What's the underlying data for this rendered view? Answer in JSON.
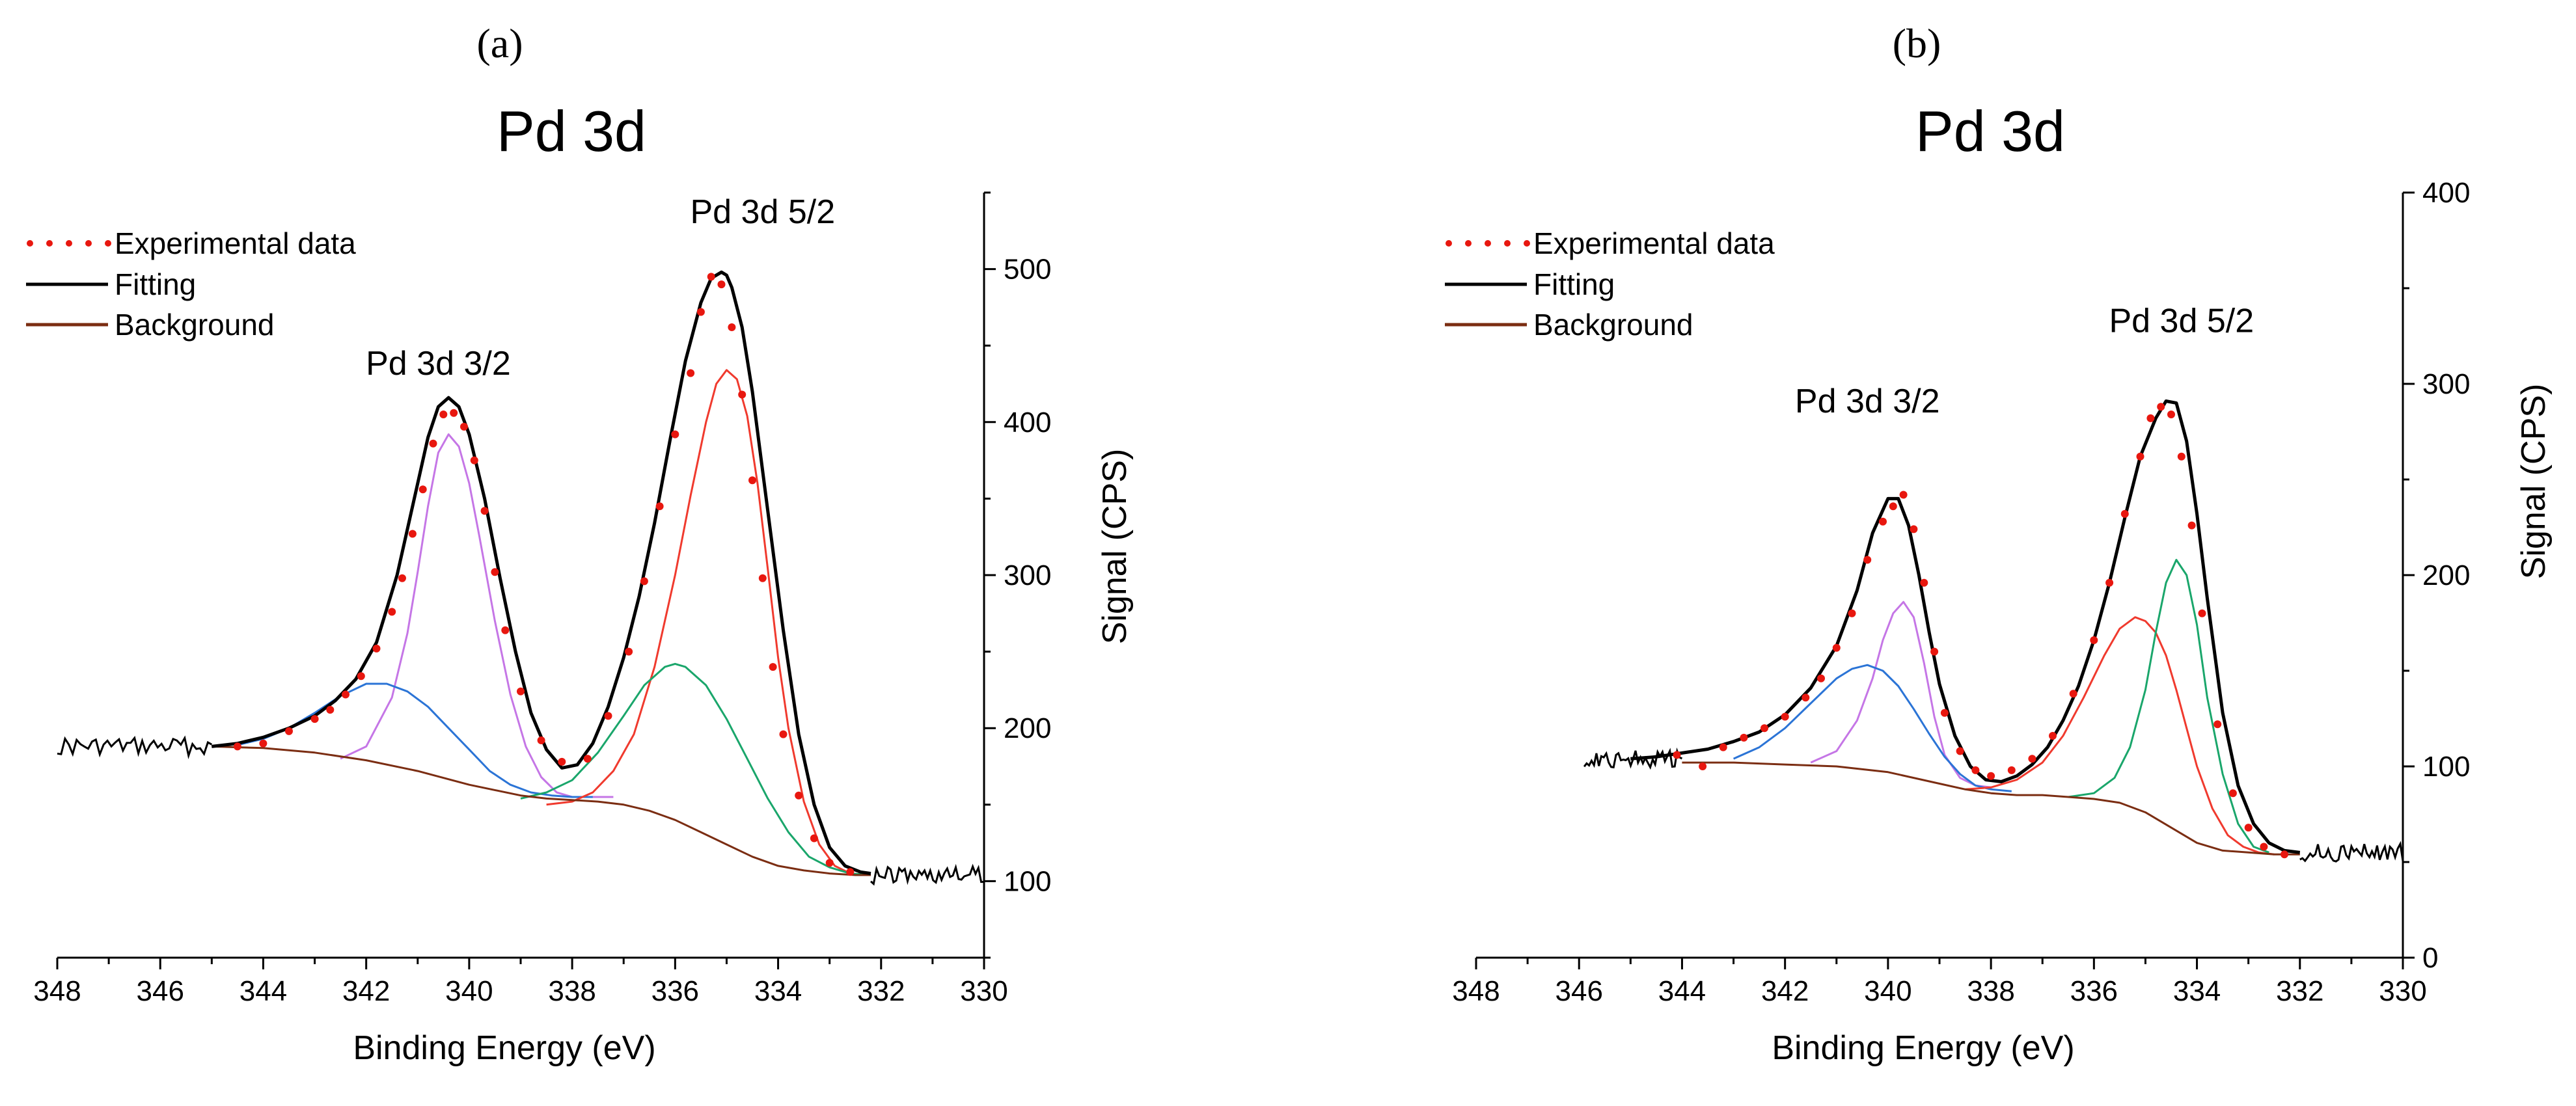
{
  "chart_data": [
    {
      "panel_label": "(a)",
      "type": "line",
      "title": "Pd 3d",
      "xlabel": "Binding Energy (eV)",
      "ylabel": "Signal (CPS)",
      "xlim": [
        348,
        330
      ],
      "ylim": [
        50,
        550
      ],
      "x_ticks": [
        348,
        346,
        344,
        342,
        340,
        338,
        336,
        334,
        332,
        330
      ],
      "y_ticks": [
        100,
        200,
        300,
        400,
        500
      ],
      "legend": {
        "position": "top-left",
        "entries": [
          {
            "name": "Experimental data",
            "color": "#e8170f",
            "style": "dots"
          },
          {
            "name": "Fitting",
            "color": "#000000",
            "style": "line"
          },
          {
            "name": "Background",
            "color": "#7b2d12",
            "style": "line"
          }
        ]
      },
      "annotations": [
        {
          "text": "Pd 3d 3/2",
          "x": 340.6,
          "y": 431
        },
        {
          "text": "Pd 3d 5/2",
          "x": 334.3,
          "y": 530
        }
      ],
      "series": [
        {
          "name": "Experimental data",
          "color": "#e8170f",
          "x": [
            344.5,
            344.0,
            343.5,
            343.0,
            342.7,
            342.4,
            342.1,
            341.8,
            341.5,
            341.3,
            341.1,
            340.9,
            340.7,
            340.5,
            340.3,
            340.1,
            339.9,
            339.7,
            339.5,
            339.3,
            339.0,
            338.6,
            338.2,
            337.7,
            337.3,
            336.9,
            336.6,
            336.3,
            336.0,
            335.7,
            335.5,
            335.3,
            335.1,
            334.9,
            334.7,
            334.5,
            334.3,
            334.1,
            333.9,
            333.6,
            333.3,
            333.0,
            332.6
          ],
          "y": [
            188,
            190,
            198,
            206,
            212,
            222,
            234,
            252,
            276,
            298,
            327,
            356,
            386,
            405,
            406,
            397,
            375,
            342,
            302,
            264,
            224,
            192,
            178,
            180,
            208,
            250,
            296,
            345,
            392,
            432,
            472,
            495,
            490,
            462,
            418,
            362,
            298,
            240,
            196,
            156,
            128,
            112,
            106
          ]
        },
        {
          "name": "Fitting",
          "color": "#000000",
          "x": [
            345.0,
            344.5,
            344.0,
            343.5,
            343.0,
            342.6,
            342.2,
            341.8,
            341.4,
            341.0,
            340.8,
            340.6,
            340.4,
            340.2,
            340.0,
            339.7,
            339.4,
            339.1,
            338.8,
            338.5,
            338.2,
            337.9,
            337.6,
            337.3,
            337.0,
            336.7,
            336.4,
            336.1,
            335.8,
            335.5,
            335.3,
            335.1,
            335.0,
            334.9,
            334.7,
            334.5,
            334.2,
            333.9,
            333.6,
            333.3,
            333.0,
            332.7,
            332.4,
            332.2
          ],
          "y": [
            188,
            190,
            194,
            200,
            208,
            218,
            232,
            256,
            300,
            360,
            390,
            410,
            416,
            410,
            392,
            350,
            298,
            250,
            210,
            186,
            174,
            176,
            190,
            214,
            246,
            286,
            334,
            388,
            440,
            478,
            494,
            498,
            496,
            488,
            462,
            420,
            342,
            264,
            196,
            150,
            122,
            110,
            106,
            105
          ]
        },
        {
          "name": "Background",
          "color": "#7b2d12",
          "x": [
            345.0,
            344.0,
            343.0,
            342.0,
            341.0,
            340.0,
            339.0,
            338.5,
            338.0,
            337.5,
            337.0,
            336.5,
            336.0,
            335.5,
            335.0,
            334.5,
            334.0,
            333.5,
            333.0,
            332.5,
            332.2
          ],
          "y": [
            188,
            187,
            184,
            179,
            172,
            163,
            156,
            154,
            153,
            152,
            150,
            146,
            140,
            132,
            124,
            116,
            110,
            107,
            105,
            104,
            104
          ]
        },
        {
          "name": "Pd 3d 3/2 component",
          "color": "#c576e6",
          "x": [
            342.5,
            342.0,
            341.5,
            341.2,
            341.0,
            340.8,
            340.6,
            340.4,
            340.2,
            340.0,
            339.8,
            339.5,
            339.2,
            338.9,
            338.6,
            338.3,
            338.0,
            337.6,
            337.2
          ],
          "y": [
            180,
            188,
            220,
            262,
            302,
            345,
            380,
            392,
            384,
            360,
            325,
            270,
            222,
            188,
            168,
            158,
            155,
            155,
            155
          ]
        },
        {
          "name": "Pd 3d 3/2 broad component",
          "color": "#2b74d6",
          "x": [
            344.5,
            344.0,
            343.5,
            343.0,
            342.5,
            342.0,
            341.6,
            341.2,
            340.8,
            340.4,
            340.0,
            339.6,
            339.2,
            338.8,
            338.4,
            338.0,
            337.6
          ],
          "y": [
            189,
            193,
            200,
            210,
            221,
            229,
            229,
            224,
            214,
            200,
            186,
            172,
            163,
            158,
            156,
            155,
            155
          ]
        },
        {
          "name": "Pd 3d 5/2 component",
          "color": "#f03a2e",
          "x": [
            338.5,
            338.0,
            337.6,
            337.2,
            336.8,
            336.4,
            336.0,
            335.7,
            335.4,
            335.2,
            335.0,
            334.8,
            334.6,
            334.4,
            334.2,
            334.0,
            333.8,
            333.5,
            333.2,
            332.9,
            332.6,
            332.2
          ],
          "y": [
            150,
            152,
            158,
            172,
            196,
            240,
            300,
            352,
            400,
            425,
            434,
            428,
            404,
            360,
            304,
            246,
            200,
            152,
            124,
            110,
            105,
            104
          ]
        },
        {
          "name": "Pd 3d 5/2 broad component",
          "color": "#1aa66b",
          "x": [
            339.0,
            338.5,
            338.0,
            337.5,
            337.0,
            336.6,
            336.2,
            336.0,
            335.8,
            335.4,
            335.0,
            334.6,
            334.2,
            333.8,
            333.4,
            333.0,
            332.6,
            332.2
          ],
          "y": [
            154,
            158,
            166,
            184,
            208,
            228,
            240,
            242,
            240,
            228,
            206,
            180,
            154,
            132,
            116,
            109,
            105,
            104
          ]
        }
      ]
    },
    {
      "panel_label": "(b)",
      "type": "line",
      "title": "Pd 3d",
      "xlabel": "Binding Energy (eV)",
      "ylabel": "Signal (CPS)",
      "xlim": [
        348,
        330
      ],
      "ylim": [
        0,
        400
      ],
      "x_ticks": [
        348,
        346,
        344,
        342,
        340,
        338,
        336,
        334,
        332,
        330
      ],
      "y_ticks": [
        0,
        100,
        200,
        300,
        400
      ],
      "legend": {
        "position": "top-left",
        "entries": [
          {
            "name": "Experimental data",
            "color": "#e8170f",
            "style": "dots"
          },
          {
            "name": "Fitting",
            "color": "#000000",
            "style": "line"
          },
          {
            "name": "Background",
            "color": "#7b2d12",
            "style": "line"
          }
        ]
      },
      "annotations": [
        {
          "text": "Pd 3d 3/2",
          "x": 340.4,
          "y": 285
        },
        {
          "text": "Pd 3d 5/2",
          "x": 334.3,
          "y": 327
        }
      ],
      "series": [
        {
          "name": "Experimental data",
          "color": "#e8170f",
          "x": [
            344.1,
            343.6,
            343.2,
            342.8,
            342.4,
            342.0,
            341.6,
            341.3,
            341.0,
            340.7,
            340.4,
            340.1,
            339.9,
            339.7,
            339.5,
            339.3,
            339.1,
            338.9,
            338.6,
            338.3,
            338.0,
            337.6,
            337.2,
            336.8,
            336.4,
            336.0,
            335.7,
            335.4,
            335.1,
            334.9,
            334.7,
            334.5,
            334.3,
            334.1,
            333.9,
            333.6,
            333.3,
            333.0,
            332.7,
            332.3
          ],
          "y": [
            106,
            100,
            110,
            115,
            120,
            126,
            136,
            146,
            162,
            180,
            208,
            228,
            236,
            242,
            224,
            196,
            160,
            128,
            108,
            98,
            95,
            98,
            104,
            116,
            138,
            166,
            196,
            232,
            262,
            282,
            288,
            284,
            262,
            226,
            180,
            122,
            86,
            68,
            58,
            54
          ]
        },
        {
          "name": "Fitting",
          "color": "#000000",
          "x": [
            345.0,
            344.5,
            344.0,
            343.5,
            343.0,
            342.5,
            342.0,
            341.5,
            341.0,
            340.6,
            340.3,
            340.0,
            339.8,
            339.6,
            339.4,
            339.2,
            339.0,
            338.7,
            338.4,
            338.1,
            337.8,
            337.5,
            337.2,
            336.9,
            336.6,
            336.3,
            336.0,
            335.7,
            335.4,
            335.1,
            334.8,
            334.6,
            334.4,
            334.2,
            334.0,
            333.8,
            333.5,
            333.2,
            332.9,
            332.6,
            332.3,
            332.0
          ],
          "y": [
            104,
            105,
            107,
            109,
            113,
            118,
            127,
            141,
            163,
            192,
            222,
            240,
            240,
            226,
            200,
            170,
            143,
            116,
            100,
            93,
            92,
            95,
            101,
            110,
            124,
            142,
            166,
            196,
            230,
            262,
            282,
            291,
            290,
            270,
            232,
            188,
            128,
            90,
            70,
            60,
            56,
            55
          ]
        },
        {
          "name": "Background",
          "color": "#7b2d12",
          "x": [
            344.0,
            343.0,
            342.0,
            341.0,
            340.0,
            339.0,
            338.5,
            338.0,
            337.5,
            337.0,
            336.5,
            336.0,
            335.5,
            335.0,
            334.5,
            334.0,
            333.5,
            333.0,
            332.5,
            332.0
          ],
          "y": [
            102,
            102,
            101,
            100,
            97,
            91,
            88,
            86,
            85,
            85,
            84,
            83,
            81,
            76,
            68,
            60,
            56,
            55,
            54,
            54
          ]
        },
        {
          "name": "Pd 3d 3/2 component",
          "color": "#c576e6",
          "x": [
            341.5,
            341.0,
            340.6,
            340.3,
            340.1,
            339.9,
            339.7,
            339.5,
            339.3,
            339.1,
            338.9,
            338.6,
            338.3,
            338.0
          ],
          "y": [
            102,
            108,
            124,
            146,
            166,
            180,
            186,
            178,
            154,
            126,
            106,
            94,
            90,
            89
          ]
        },
        {
          "name": "Pd 3d 3/2 broad component",
          "color": "#2b74d6",
          "x": [
            343.0,
            342.5,
            342.0,
            341.5,
            341.0,
            340.7,
            340.4,
            340.1,
            339.8,
            339.5,
            339.2,
            338.9,
            338.6,
            338.3,
            338.0,
            337.6
          ],
          "y": [
            104,
            110,
            120,
            133,
            146,
            151,
            153,
            150,
            142,
            130,
            117,
            105,
            96,
            90,
            88,
            87
          ]
        },
        {
          "name": "Pd 3d 5/2 component",
          "color": "#f03a2e",
          "x": [
            338.5,
            338.0,
            337.5,
            337.0,
            336.6,
            336.2,
            335.8,
            335.5,
            335.2,
            335.0,
            334.8,
            334.6,
            334.4,
            334.2,
            334.0,
            333.7,
            333.4,
            333.1,
            332.8,
            332.5
          ],
          "y": [
            88,
            89,
            93,
            102,
            116,
            136,
            158,
            172,
            178,
            176,
            170,
            158,
            140,
            120,
            100,
            78,
            64,
            58,
            55,
            54
          ]
        },
        {
          "name": "Pd 3d 5/2 broad component",
          "color": "#1aa66b",
          "x": [
            336.5,
            336.0,
            335.6,
            335.3,
            335.0,
            334.8,
            334.6,
            334.4,
            334.2,
            334.0,
            333.8,
            333.5,
            333.2,
            332.9,
            332.6
          ],
          "y": [
            84,
            86,
            94,
            110,
            140,
            170,
            196,
            208,
            200,
            174,
            136,
            96,
            70,
            58,
            55
          ]
        }
      ]
    }
  ]
}
